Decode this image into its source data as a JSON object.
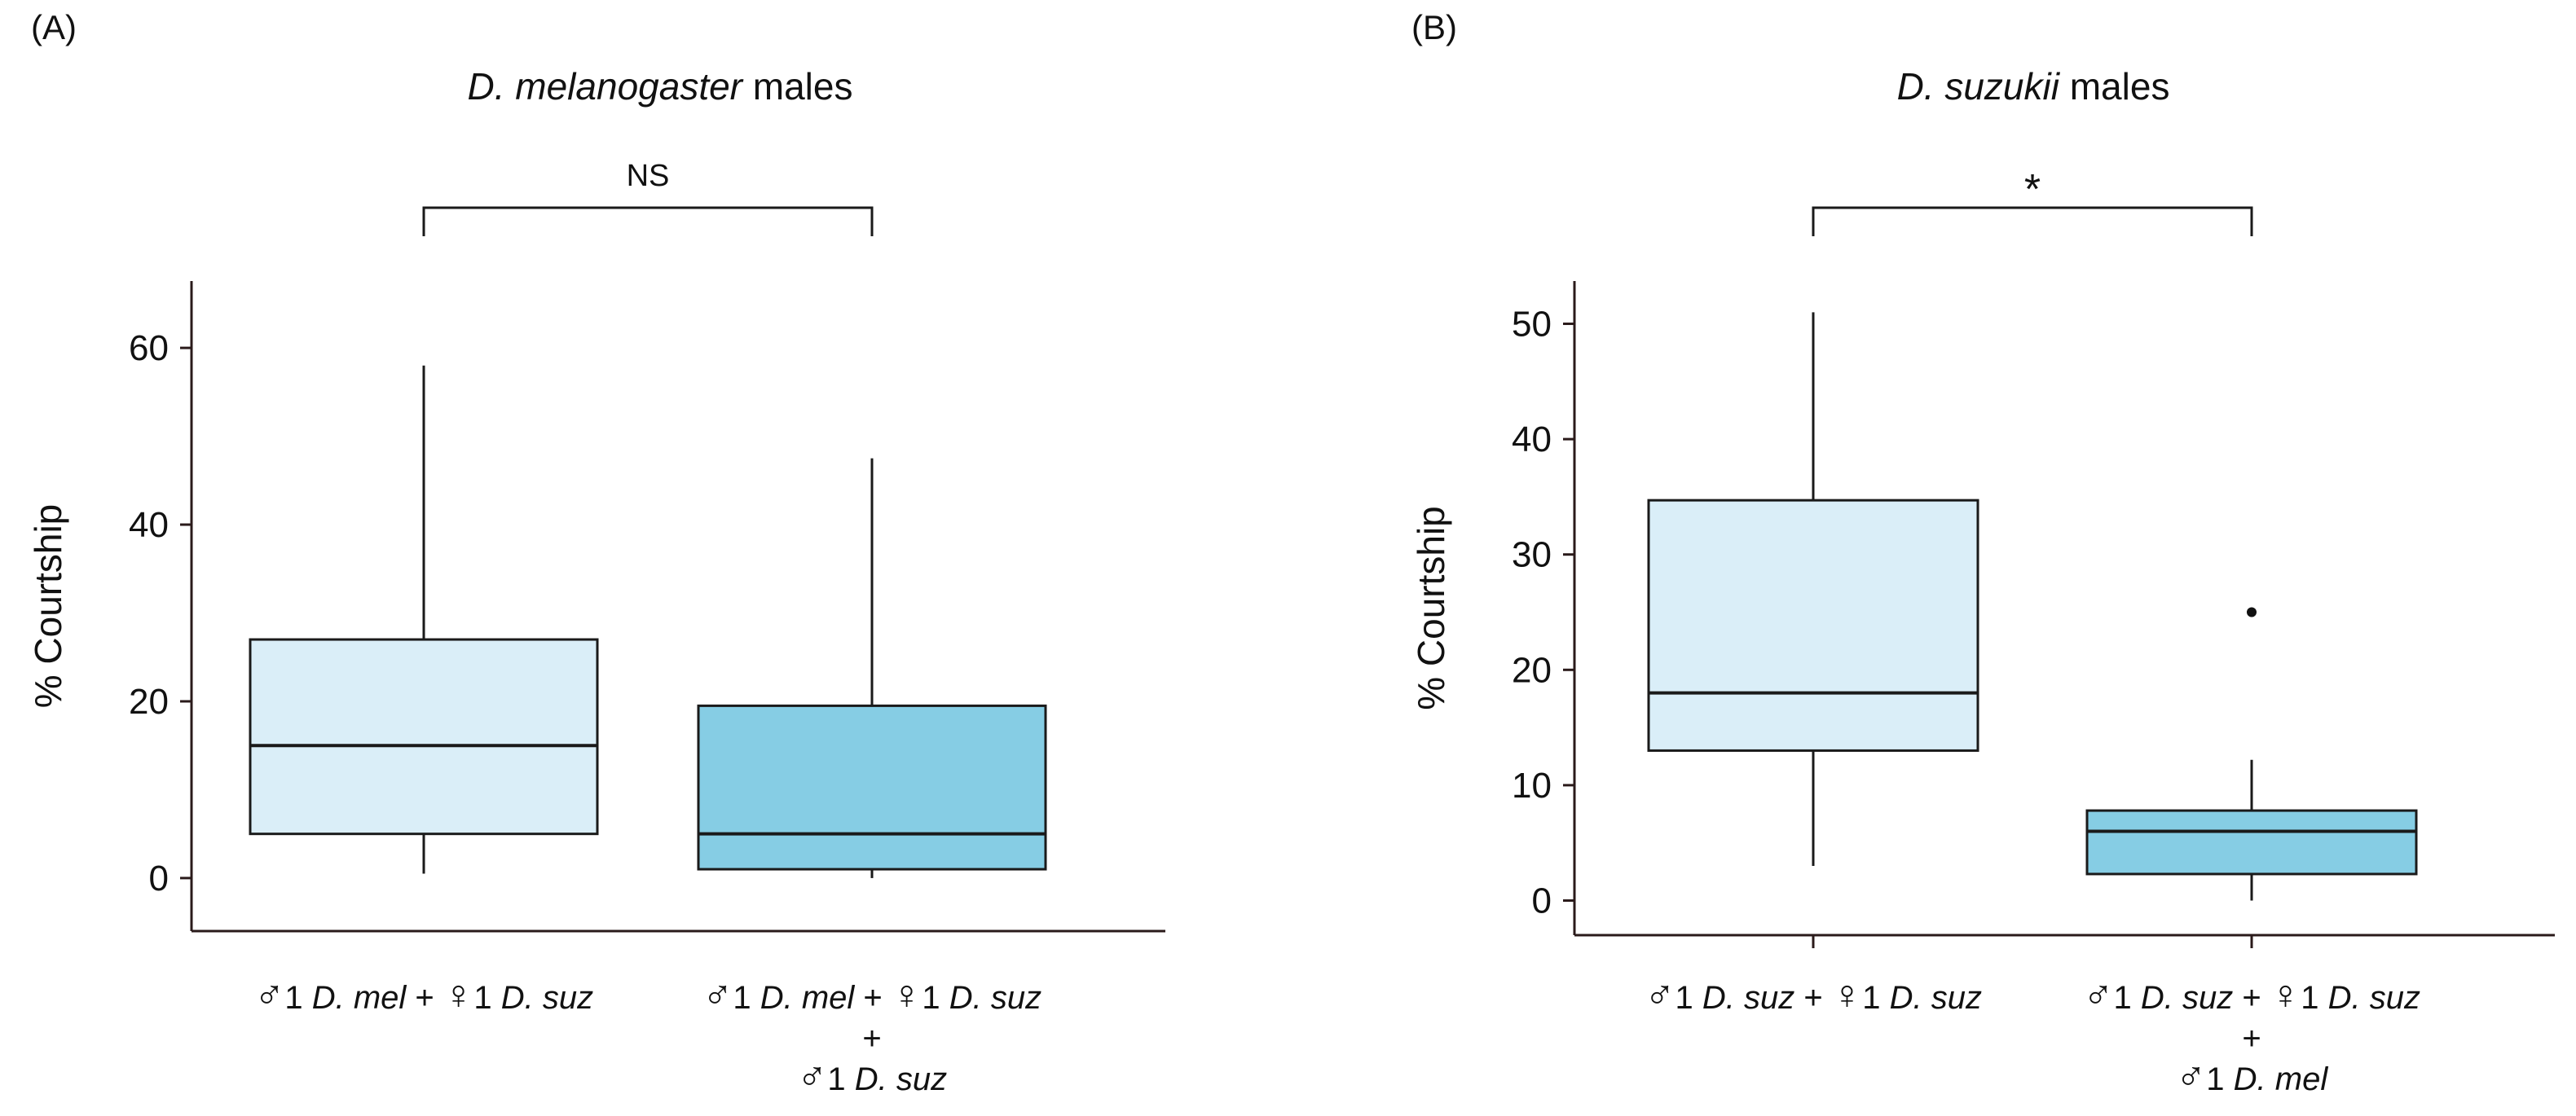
{
  "chart_data": [
    {
      "type": "boxplot",
      "panel_label": "(A)",
      "title_italic": "D. melanogaster",
      "title_rest": " males",
      "ylabel": "% Courtship",
      "ylim": [
        -6,
        66
      ],
      "yticks": [
        0,
        20,
        40,
        60
      ],
      "significance": "NS",
      "colors": [
        "#daeef8",
        "#86cde4"
      ],
      "groups": [
        {
          "lines": [
            [
              {
                "t": "♂",
                "sym": true
              },
              {
                "t": "1 "
              },
              {
                "t": "D. mel",
                "i": true
              },
              {
                "t": " + "
              },
              {
                "t": "♀",
                "sym": true
              },
              {
                "t": "1 "
              },
              {
                "t": "D. suz",
                "i": true
              }
            ]
          ],
          "stats": {
            "min": 0.5,
            "q1": 5,
            "median": 15,
            "q3": 27,
            "max": 58,
            "outliers": []
          }
        },
        {
          "lines": [
            [
              {
                "t": "♂",
                "sym": true
              },
              {
                "t": "1 "
              },
              {
                "t": "D. mel",
                "i": true
              },
              {
                "t": " + "
              },
              {
                "t": "♀",
                "sym": true
              },
              {
                "t": "1 "
              },
              {
                "t": "D. suz",
                "i": true
              }
            ],
            [
              {
                "t": "+"
              }
            ],
            [
              {
                "t": "♂",
                "sym": true
              },
              {
                "t": "1 "
              },
              {
                "t": "D. suz",
                "i": true
              }
            ]
          ],
          "stats": {
            "min": 0,
            "q1": 1,
            "median": 5,
            "q3": 19.5,
            "max": 47.5,
            "outliers": []
          }
        }
      ]
    },
    {
      "type": "boxplot",
      "panel_label": "(B)",
      "title_italic": "D. suzukii",
      "title_rest": " males",
      "ylabel": "% Courtship",
      "ylim": [
        -3,
        53
      ],
      "yticks": [
        0,
        10,
        20,
        30,
        40,
        50
      ],
      "significance": "*",
      "colors": [
        "#daeef8",
        "#86cde4"
      ],
      "groups": [
        {
          "lines": [
            [
              {
                "t": "♂",
                "sym": true
              },
              {
                "t": "1 "
              },
              {
                "t": "D. suz",
                "i": true
              },
              {
                "t": " + "
              },
              {
                "t": "♀",
                "sym": true
              },
              {
                "t": "1 "
              },
              {
                "t": "D. suz",
                "i": true
              }
            ]
          ],
          "stats": {
            "min": 3,
            "q1": 13,
            "median": 18,
            "q3": 34.7,
            "max": 51,
            "outliers": []
          }
        },
        {
          "lines": [
            [
              {
                "t": "♂",
                "sym": true
              },
              {
                "t": "1 "
              },
              {
                "t": "D. suz",
                "i": true
              },
              {
                "t": " + "
              },
              {
                "t": "♀",
                "sym": true
              },
              {
                "t": "1 "
              },
              {
                "t": "D. suz",
                "i": true
              }
            ],
            [
              {
                "t": "+"
              }
            ],
            [
              {
                "t": "♂",
                "sym": true
              },
              {
                "t": "1 "
              },
              {
                "t": "D. mel",
                "i": true
              }
            ]
          ],
          "stats": {
            "min": 0,
            "q1": 2.3,
            "median": 6,
            "q3": 7.8,
            "max": 12.2,
            "outliers": [
              25
            ]
          }
        }
      ]
    }
  ]
}
